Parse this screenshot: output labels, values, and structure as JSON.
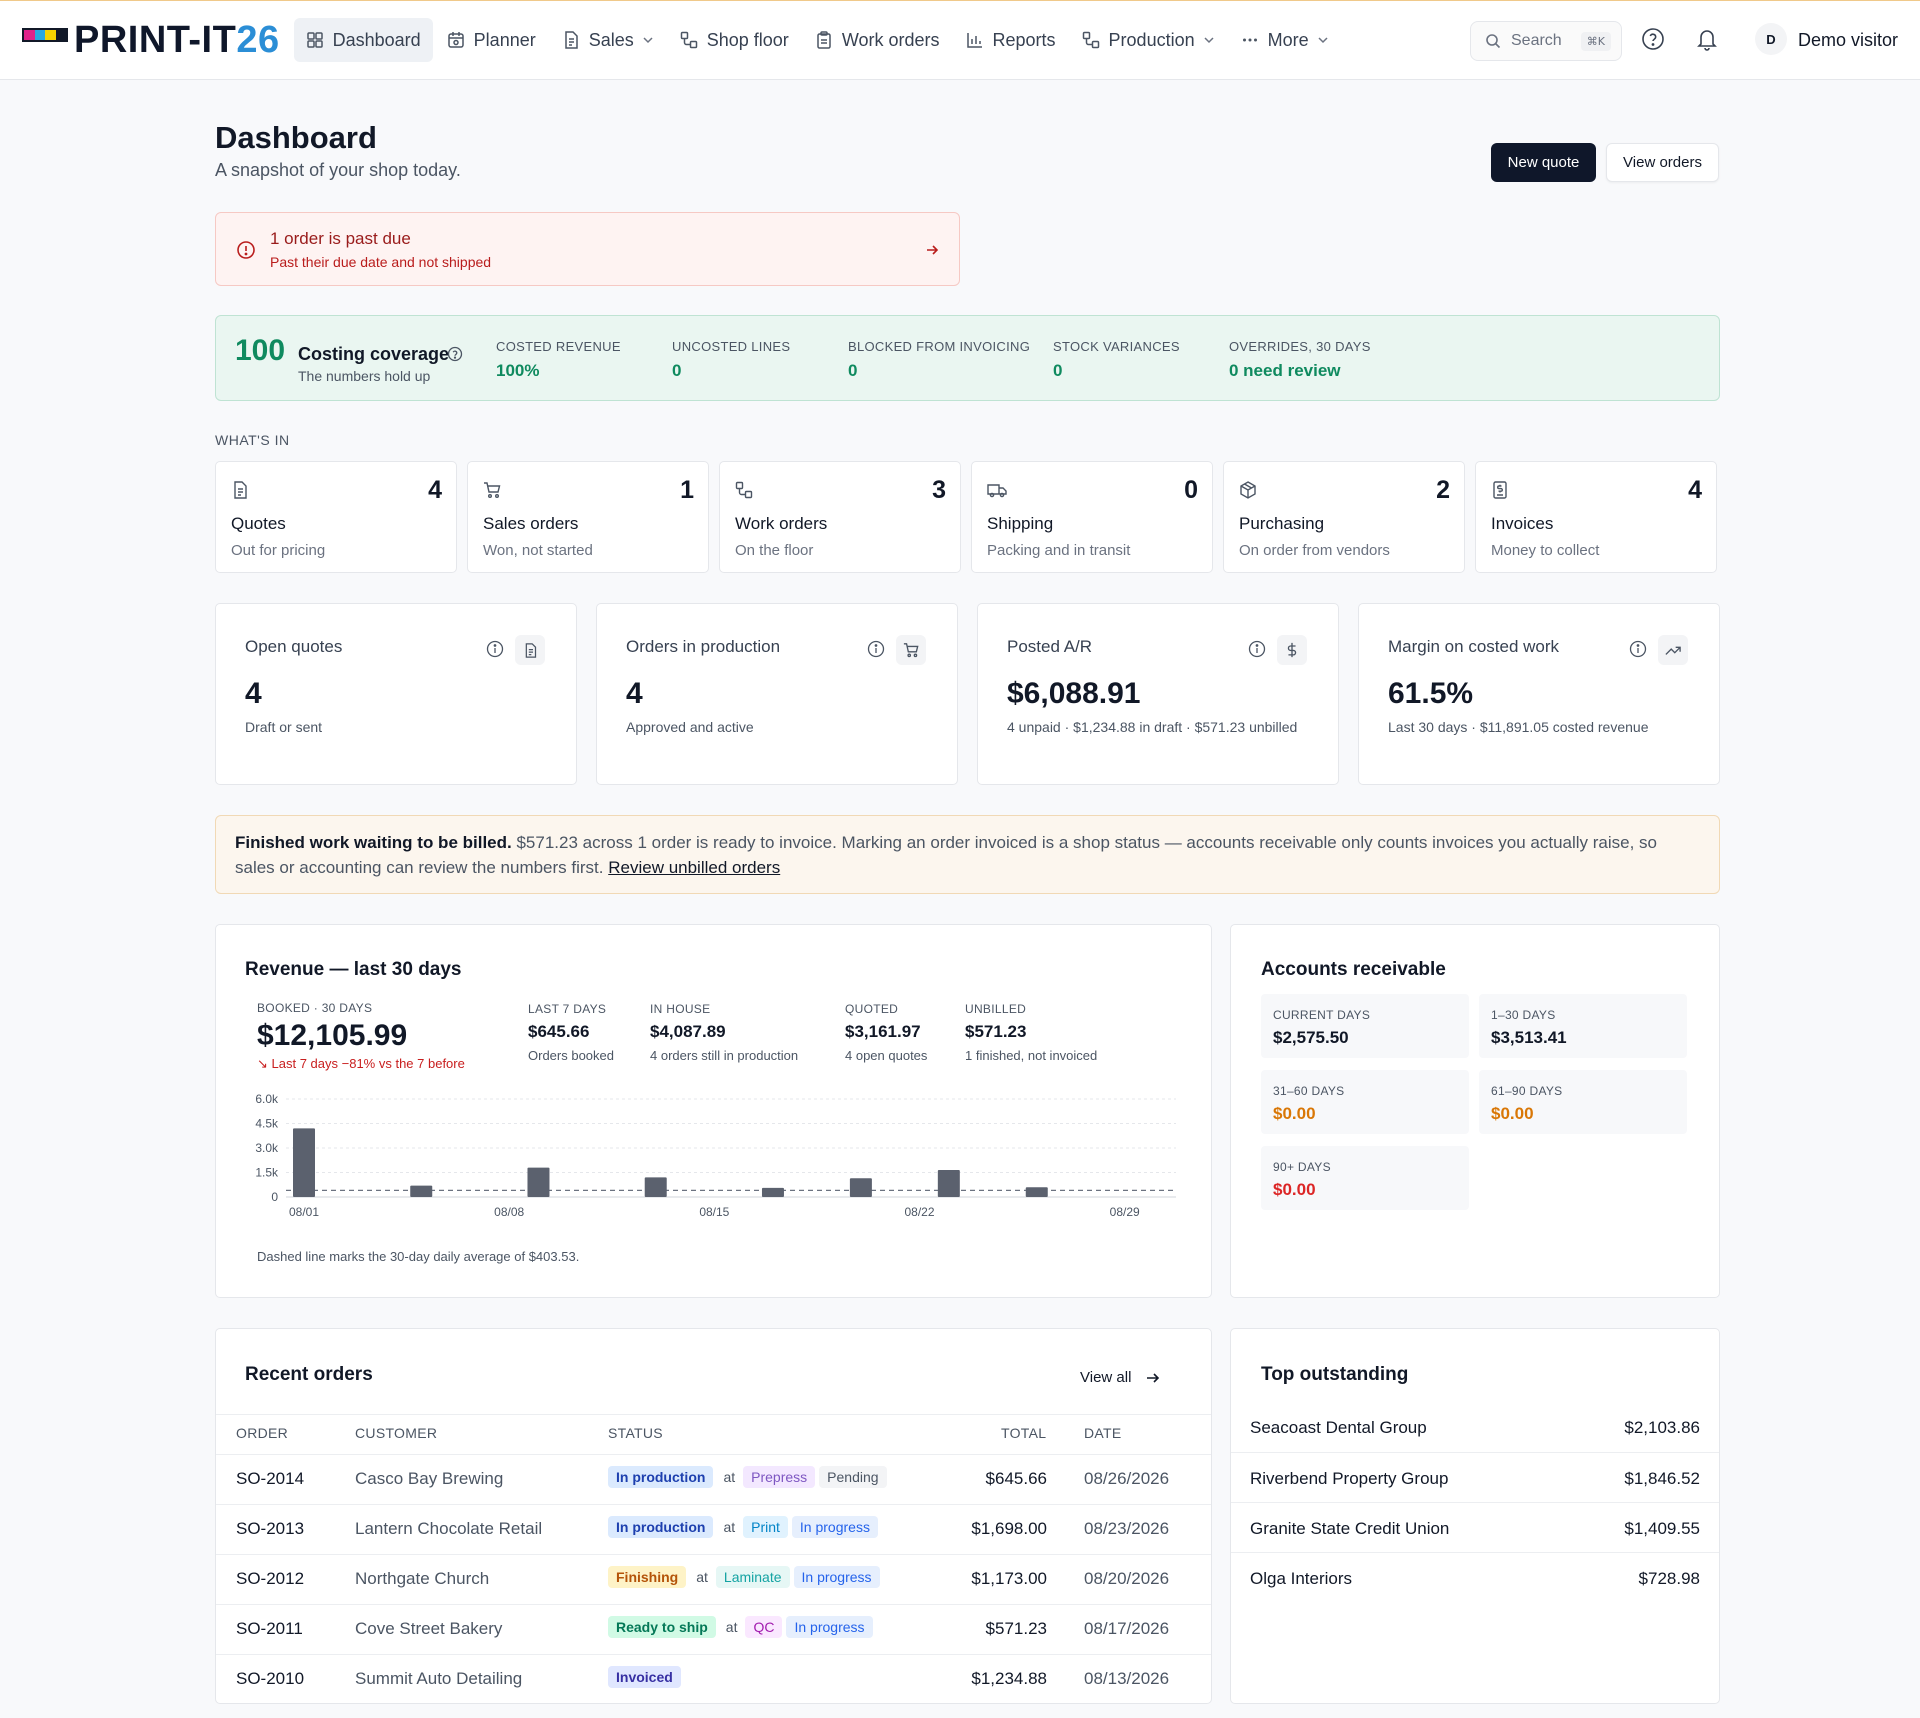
{
  "brand": {
    "name": "PRINT-IT",
    "year": "26",
    "bar_colors": [
      "#e0218a",
      "#29a8e0",
      "#f5d300",
      "#111827"
    ]
  },
  "nav": {
    "items": [
      {
        "label": "Dashboard",
        "icon": "dashboard-icon"
      },
      {
        "label": "Planner",
        "icon": "calendar-icon"
      },
      {
        "label": "Sales",
        "icon": "document-icon"
      },
      {
        "label": "Shop floor",
        "icon": "workflow-icon"
      },
      {
        "label": "Work orders",
        "icon": "clipboard-icon"
      },
      {
        "label": "Reports",
        "icon": "bar-chart-icon"
      },
      {
        "label": "Production",
        "icon": "workflow-icon"
      },
      {
        "label": "More",
        "icon": "more-icon"
      }
    ],
    "search_label": "Search",
    "search_shortcut": "⌘K",
    "avatar_initial": "D",
    "user_name": "Demo visitor"
  },
  "header": {
    "title": "Dashboard",
    "subtitle": "A snapshot of your shop today.",
    "new_quote": "New quote",
    "view_orders": "View orders"
  },
  "alert": {
    "title": "1 order is past due",
    "subtitle": "Past their due date and not shipped"
  },
  "coverage": {
    "score": "100",
    "label": "Costing coverage",
    "subtitle": "The numbers hold up",
    "metrics": [
      {
        "label": "COSTED REVENUE",
        "value": "100%"
      },
      {
        "label": "UNCOSTED LINES",
        "value": "0"
      },
      {
        "label": "BLOCKED FROM INVOICING",
        "value": "0"
      },
      {
        "label": "STOCK VARIANCES",
        "value": "0"
      },
      {
        "label": "OVERRIDES, 30 DAYS",
        "value": "0 need review"
      }
    ]
  },
  "whats_in": {
    "label": "WHAT'S IN",
    "tiles": [
      {
        "title": "Quotes",
        "sub": "Out for pricing",
        "count": "4",
        "icon": "document-icon"
      },
      {
        "title": "Sales orders",
        "sub": "Won, not started",
        "count": "1",
        "icon": "cart-icon"
      },
      {
        "title": "Work orders",
        "sub": "On the floor",
        "count": "3",
        "icon": "workflow-icon"
      },
      {
        "title": "Shipping",
        "sub": "Packing and in transit",
        "count": "0",
        "icon": "truck-icon"
      },
      {
        "title": "Purchasing",
        "sub": "On order from vendors",
        "count": "2",
        "icon": "package-icon"
      },
      {
        "title": "Invoices",
        "sub": "Money to collect",
        "count": "4",
        "icon": "invoice-icon"
      }
    ]
  },
  "kpis": [
    {
      "title": "Open quotes",
      "value": "4",
      "sub": "Draft or sent",
      "icon": "document-icon"
    },
    {
      "title": "Orders in production",
      "value": "4",
      "sub": "Approved and active",
      "icon": "cart-icon"
    },
    {
      "title": "Posted A/R",
      "value": "$6,088.91",
      "sub": "4 unpaid · $1,234.88 in draft · $571.23 unbilled",
      "icon": "dollar-icon"
    },
    {
      "title": "Margin on costed work",
      "value": "61.5%",
      "sub": "Last 30 days · $11,891.05 costed revenue",
      "icon": "trend-up-icon"
    }
  ],
  "banner": {
    "bold": "Finished work waiting to be billed.",
    "text": " $571.23 across 1 order is ready to invoice. Marking an order invoiced is a shop status — accounts receivable only counts invoices you actually raise, so sales or accounting can review the numbers first. ",
    "link": "Review unbilled orders"
  },
  "revenue": {
    "title": "Revenue — last 30 days",
    "booked_label": "BOOKED · 30 DAYS",
    "booked_value": "$12,105.99",
    "trend": "Last 7 days −81% vs the 7 before",
    "stats": [
      {
        "label": "LAST 7 DAYS",
        "value": "$645.66",
        "sub": "Orders booked"
      },
      {
        "label": "IN HOUSE",
        "value": "$4,087.89",
        "sub": "4 orders still in production"
      },
      {
        "label": "QUOTED",
        "value": "$3,161.97",
        "sub": "4 open quotes"
      },
      {
        "label": "UNBILLED",
        "value": "$571.23",
        "sub": "1 finished, not invoiced"
      }
    ],
    "note": "Dashed line marks the 30-day daily average of $403.53."
  },
  "chart_data": {
    "type": "bar",
    "title": "",
    "xlabel": "",
    "ylabel": "",
    "ylim": [
      0,
      6000
    ],
    "y_ticks": [
      "6.0k",
      "4.5k",
      "3.0k",
      "1.5k",
      "0"
    ],
    "x_ticks": [
      "08/01",
      "08/08",
      "08/15",
      "08/22",
      "08/29"
    ],
    "x_range": [
      1,
      30
    ],
    "average": 403.53,
    "points": [
      {
        "day": 1,
        "value": 4200
      },
      {
        "day": 5,
        "value": 700
      },
      {
        "day": 9,
        "value": 1800
      },
      {
        "day": 13,
        "value": 1200
      },
      {
        "day": 17,
        "value": 560
      },
      {
        "day": 20,
        "value": 1150
      },
      {
        "day": 23,
        "value": 1650
      },
      {
        "day": 26,
        "value": 600
      }
    ],
    "bar_color": "#5b616e"
  },
  "ar": {
    "title": "Accounts receivable",
    "buckets": [
      {
        "label": "CURRENT DAYS",
        "value": "$2,575.50",
        "color": "#111827"
      },
      {
        "label": "1–30 DAYS",
        "value": "$3,513.41",
        "color": "#111827"
      },
      {
        "label": "31–60 DAYS",
        "value": "$0.00",
        "color": "#d97706"
      },
      {
        "label": "61–90 DAYS",
        "value": "$0.00",
        "color": "#d97706"
      },
      {
        "label": "90+ DAYS",
        "value": "$0.00",
        "color": "#dc2626"
      }
    ]
  },
  "orders": {
    "title": "Recent orders",
    "view_all": "View all",
    "headers": [
      "ORDER",
      "CUSTOMER",
      "STATUS",
      "TOTAL",
      "DATE"
    ],
    "at": "at",
    "rows": [
      {
        "id": "SO-2014",
        "customer": "Casco Bay Brewing",
        "status": "In production",
        "status_kind": "blue",
        "stage": "Prepress",
        "stage_kind": "purple",
        "state": "Pending",
        "state_kind": "gray",
        "total": "$645.66",
        "date": "08/26/2026"
      },
      {
        "id": "SO-2013",
        "customer": "Lantern Chocolate Retail",
        "status": "In production",
        "status_kind": "blue",
        "stage": "Print",
        "stage_kind": "cyan",
        "state": "In progress",
        "state_kind": "lightblue",
        "total": "$1,698.00",
        "date": "08/23/2026"
      },
      {
        "id": "SO-2012",
        "customer": "Northgate Church",
        "status": "Finishing",
        "status_kind": "amber",
        "stage": "Laminate",
        "stage_kind": "teal",
        "state": "In progress",
        "state_kind": "lightblue",
        "total": "$1,173.00",
        "date": "08/20/2026"
      },
      {
        "id": "SO-2011",
        "customer": "Cove Street Bakery",
        "status": "Ready to ship",
        "status_kind": "green",
        "stage": "QC",
        "stage_kind": "magenta",
        "state": "In progress",
        "state_kind": "lightblue",
        "total": "$571.23",
        "date": "08/17/2026"
      },
      {
        "id": "SO-2010",
        "customer": "Summit Auto Detailing",
        "status": "Invoiced",
        "status_kind": "indigo",
        "stage": "",
        "stage_kind": "",
        "state": "",
        "state_kind": "",
        "total": "$1,234.88",
        "date": "08/13/2026"
      }
    ]
  },
  "outstanding": {
    "title": "Top outstanding",
    "rows": [
      {
        "name": "Seacoast Dental Group",
        "amount": "$2,103.86"
      },
      {
        "name": "Riverbend Property Group",
        "amount": "$1,846.52"
      },
      {
        "name": "Granite State Credit Union",
        "amount": "$1,409.55"
      },
      {
        "name": "Olga Interiors",
        "amount": "$728.98"
      }
    ]
  }
}
